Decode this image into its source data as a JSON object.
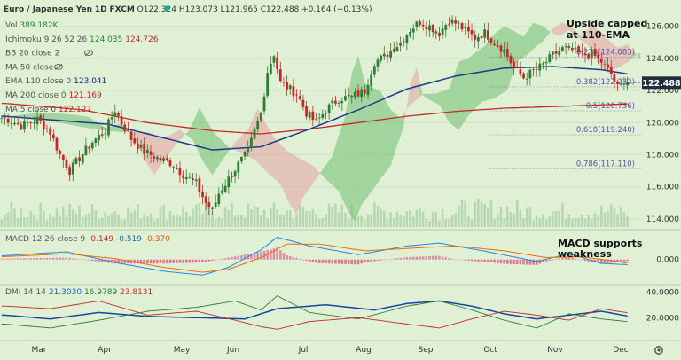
{
  "header": {
    "symbol": "Euro / Japanese Yen",
    "interval": "1D",
    "exchange": "FXCM",
    "ohlc": "O122.324  H123.073  L121.965  C122.488  +0.164 (+0.13%)"
  },
  "legend": [
    {
      "label": "Vol",
      "values": [
        "389.182K"
      ],
      "colors": [
        "#2e7d32"
      ]
    },
    {
      "label": "Ichimoku 9 26 52 26",
      "values": [
        "124.035",
        "124.726"
      ],
      "colors": [
        "#2e7d32",
        "#c62828"
      ]
    },
    {
      "label": "BB 20 close 2",
      "values": [],
      "colors": [],
      "hidden": true
    },
    {
      "label": "MA 50 close",
      "values": [],
      "colors": [],
      "hidden": true
    },
    {
      "label": "EMA 110 close 0",
      "values": [
        "123.041"
      ],
      "colors": [
        "#1a237e"
      ]
    },
    {
      "label": "MA 200 close 0",
      "values": [
        "121.169"
      ],
      "colors": [
        "#c62828"
      ]
    },
    {
      "label": "MA 5 close 0",
      "values": [
        "122.127"
      ],
      "colors": [
        "#c62828"
      ]
    }
  ],
  "annotations": {
    "main": [
      "Upside capped",
      "at 110-EMA"
    ],
    "macd": [
      "MACD supports",
      "weakness"
    ]
  },
  "macd_header": {
    "label": "MACD 12 26 close 9",
    "values": [
      "-0.149",
      "-0.519",
      "-0.370"
    ],
    "colors": [
      "#c62828",
      "#1565c0",
      "#e65100"
    ]
  },
  "dmi_header": {
    "label": "DMI 14 14",
    "values": [
      "21.3030",
      "16.9789",
      "23.8131"
    ],
    "colors": [
      "#1565c0",
      "#2e7d32",
      "#c62828"
    ]
  },
  "fib_levels": [
    {
      "label": "0.236(124.083)",
      "value": 124.083
    },
    {
      "label": "0.382(122.232)",
      "value": 122.232
    },
    {
      "label": "0.5(120.736)",
      "value": 120.736
    },
    {
      "label": "0.618(119.240)",
      "value": 119.24
    },
    {
      "label": "0.786(117.110)",
      "value": 117.11
    }
  ],
  "price_badge": "122.488",
  "colors": {
    "bg": "#dff0d5",
    "up": "#2e7d32",
    "down": "#c62828",
    "ema110": "#1a3a8f",
    "ma200": "#c62828",
    "cloud_up": "#6fbf6f",
    "cloud_down": "#e6a0a0",
    "fib": "#5c4ea0"
  },
  "chart_data": [
    {
      "type": "candlestick",
      "title": "Euro / Japanese Yen, 1D, FXCM",
      "x_labels": [
        "Mar",
        "Apr",
        "May",
        "Jun",
        "Jul",
        "Aug",
        "Sep",
        "Oct",
        "Nov",
        "Dec"
      ],
      "y_ticks": [
        114.0,
        116.0,
        118.0,
        120.0,
        122.0,
        124.0,
        126.0
      ],
      "ylim": [
        113.5,
        127.2
      ],
      "close_path": [
        [
          1.0,
          120.3
        ],
        [
          6.0,
          119.8
        ],
        [
          11.0,
          120.2
        ],
        [
          15.0,
          119.4
        ],
        [
          18.0,
          118.0
        ],
        [
          21.0,
          117.0
        ],
        [
          24.0,
          117.8
        ],
        [
          28.0,
          118.8
        ],
        [
          32.0,
          119.5
        ],
        [
          35.0,
          120.8
        ],
        [
          37.0,
          120.0
        ],
        [
          40.0,
          119.0
        ],
        [
          44.0,
          118.2
        ],
        [
          48.0,
          117.8
        ],
        [
          52.0,
          117.5
        ],
        [
          56.0,
          116.8
        ],
        [
          60.0,
          116.2
        ],
        [
          63.0,
          115.0
        ],
        [
          65.0,
          114.5
        ],
        [
          67.0,
          115.6
        ],
        [
          70.0,
          116.5
        ],
        [
          73.0,
          117.4
        ],
        [
          76.0,
          118.2
        ],
        [
          78.0,
          119.5
        ],
        [
          80.0,
          120.6
        ],
        [
          82.0,
          123.2
        ],
        [
          84.0,
          124.3
        ],
        [
          86.0,
          122.5
        ],
        [
          88.0,
          122.2
        ],
        [
          91.0,
          121.8
        ],
        [
          94.0,
          120.6
        ],
        [
          97.0,
          120.0
        ],
        [
          100.0,
          120.8
        ],
        [
          104.0,
          121.5
        ],
        [
          108.0,
          121.6
        ],
        [
          112.0,
          122.0
        ],
        [
          115.0,
          123.8
        ],
        [
          118.0,
          124.1
        ],
        [
          120.0,
          124.5
        ],
        [
          123.0,
          125.0
        ],
        [
          126.0,
          125.8
        ],
        [
          129.0,
          126.3
        ],
        [
          132.0,
          126.0
        ],
        [
          135.0,
          125.6
        ],
        [
          138.0,
          126.4
        ],
        [
          141.0,
          126.1
        ],
        [
          143.0,
          125.7
        ],
        [
          146.0,
          125.3
        ],
        [
          149.0,
          125.6
        ],
        [
          152.0,
          125.0
        ],
        [
          155.0,
          124.5
        ],
        [
          158.0,
          123.4
        ],
        [
          161.0,
          122.8
        ],
        [
          164.0,
          123.2
        ],
        [
          167.0,
          123.6
        ],
        [
          170.0,
          124.2
        ],
        [
          173.0,
          124.6
        ],
        [
          176.0,
          124.5
        ],
        [
          179.0,
          124.2
        ],
        [
          182.0,
          124.3
        ],
        [
          185.0,
          123.8
        ],
        [
          188.0,
          123.0
        ],
        [
          190.0,
          122.2
        ],
        [
          192.0,
          122.4
        ],
        [
          193.0,
          122.49
        ]
      ],
      "ema110": [
        [
          1.0,
          120.4
        ],
        [
          33.0,
          119.9
        ],
        [
          65.0,
          118.3
        ],
        [
          80.0,
          118.5
        ],
        [
          95.0,
          119.6
        ],
        [
          110.0,
          120.8
        ],
        [
          125.0,
          122.1
        ],
        [
          140.0,
          122.9
        ],
        [
          155.0,
          123.4
        ],
        [
          170.0,
          123.5
        ],
        [
          185.0,
          123.3
        ],
        [
          193.0,
          123.04
        ]
      ],
      "ma200": [
        [
          1.0,
          121.2
        ],
        [
          25.0,
          120.8
        ],
        [
          45.0,
          120.0
        ],
        [
          65.0,
          119.5
        ],
        [
          80.0,
          119.3
        ],
        [
          95.0,
          119.6
        ],
        [
          110.0,
          120.0
        ],
        [
          125.0,
          120.4
        ],
        [
          140.0,
          120.7
        ],
        [
          155.0,
          120.9
        ],
        [
          170.0,
          121.0
        ],
        [
          193.0,
          121.17
        ]
      ],
      "fib_levels": [
        124.083,
        122.232,
        120.736,
        119.24,
        117.11
      ],
      "last_close": 122.488,
      "volume_max": 600
    },
    {
      "type": "line",
      "title": "MACD 12 26 close 9",
      "y_ticks": [
        0.0
      ],
      "ylim": [
        -2.3,
        2.8
      ],
      "macd": [
        [
          1.0,
          0.4
        ],
        [
          20.0,
          0.8
        ],
        [
          35.0,
          -0.3
        ],
        [
          50.0,
          -1.2
        ],
        [
          62.0,
          -1.6
        ],
        [
          70.0,
          -0.8
        ],
        [
          80.0,
          1.0
        ],
        [
          85.0,
          2.3
        ],
        [
          95.0,
          1.4
        ],
        [
          110.0,
          0.5
        ],
        [
          125.0,
          1.4
        ],
        [
          135.0,
          1.7
        ],
        [
          150.0,
          0.8
        ],
        [
          165.0,
          -0.2
        ],
        [
          175.0,
          0.6
        ],
        [
          185.0,
          -0.4
        ],
        [
          193.0,
          -0.52
        ]
      ],
      "signal": [
        [
          1.0,
          0.3
        ],
        [
          20.0,
          0.6
        ],
        [
          35.0,
          0.1
        ],
        [
          50.0,
          -0.8
        ],
        [
          62.0,
          -1.3
        ],
        [
          70.0,
          -1.0
        ],
        [
          80.0,
          0.2
        ],
        [
          88.0,
          1.6
        ],
        [
          98.0,
          1.6
        ],
        [
          112.0,
          0.9
        ],
        [
          128.0,
          1.2
        ],
        [
          140.0,
          1.4
        ],
        [
          155.0,
          0.9
        ],
        [
          168.0,
          0.2
        ],
        [
          178.0,
          0.3
        ],
        [
          188.0,
          -0.1
        ],
        [
          193.0,
          -0.37
        ]
      ],
      "hist_last": -0.149
    },
    {
      "type": "line",
      "title": "DMI 14 14",
      "y_ticks": [
        20.0,
        40.0
      ],
      "ylim": [
        5,
        45
      ],
      "adx": [
        [
          1.0,
          22.0
        ],
        [
          15.0,
          19.0
        ],
        [
          30.0,
          24.0
        ],
        [
          45.0,
          21.0
        ],
        [
          60.0,
          20.0
        ],
        [
          75.0,
          19.0
        ],
        [
          85.0,
          27.0
        ],
        [
          100.0,
          30.0
        ],
        [
          115.0,
          26.0
        ],
        [
          125.0,
          31.0
        ],
        [
          135.0,
          33.0
        ],
        [
          145.0,
          29.0
        ],
        [
          155.0,
          23.0
        ],
        [
          165.0,
          19.0
        ],
        [
          175.0,
          22.0
        ],
        [
          185.0,
          25.0
        ],
        [
          193.0,
          21.3
        ]
      ],
      "plus_di": [
        [
          1.0,
          15.0
        ],
        [
          15.0,
          12.0
        ],
        [
          30.0,
          18.0
        ],
        [
          45.0,
          25.0
        ],
        [
          60.0,
          28.0
        ],
        [
          72.0,
          33.0
        ],
        [
          80.0,
          26.0
        ],
        [
          85.0,
          37.0
        ],
        [
          95.0,
          24.0
        ],
        [
          110.0,
          19.0
        ],
        [
          125.0,
          29.0
        ],
        [
          135.0,
          33.0
        ],
        [
          145.0,
          26.0
        ],
        [
          155.0,
          18.0
        ],
        [
          165.0,
          12.0
        ],
        [
          175.0,
          23.0
        ],
        [
          185.0,
          19.0
        ],
        [
          193.0,
          16.98
        ]
      ],
      "minus_di": [
        [
          1.0,
          29.0
        ],
        [
          15.0,
          27.0
        ],
        [
          30.0,
          33.0
        ],
        [
          45.0,
          22.0
        ],
        [
          60.0,
          25.0
        ],
        [
          72.0,
          18.0
        ],
        [
          80.0,
          13.0
        ],
        [
          85.0,
          11.0
        ],
        [
          95.0,
          17.0
        ],
        [
          110.0,
          20.0
        ],
        [
          125.0,
          15.0
        ],
        [
          135.0,
          12.0
        ],
        [
          145.0,
          19.0
        ],
        [
          155.0,
          25.0
        ],
        [
          165.0,
          22.0
        ],
        [
          175.0,
          18.0
        ],
        [
          185.0,
          27.0
        ],
        [
          193.0,
          23.81
        ]
      ]
    }
  ]
}
